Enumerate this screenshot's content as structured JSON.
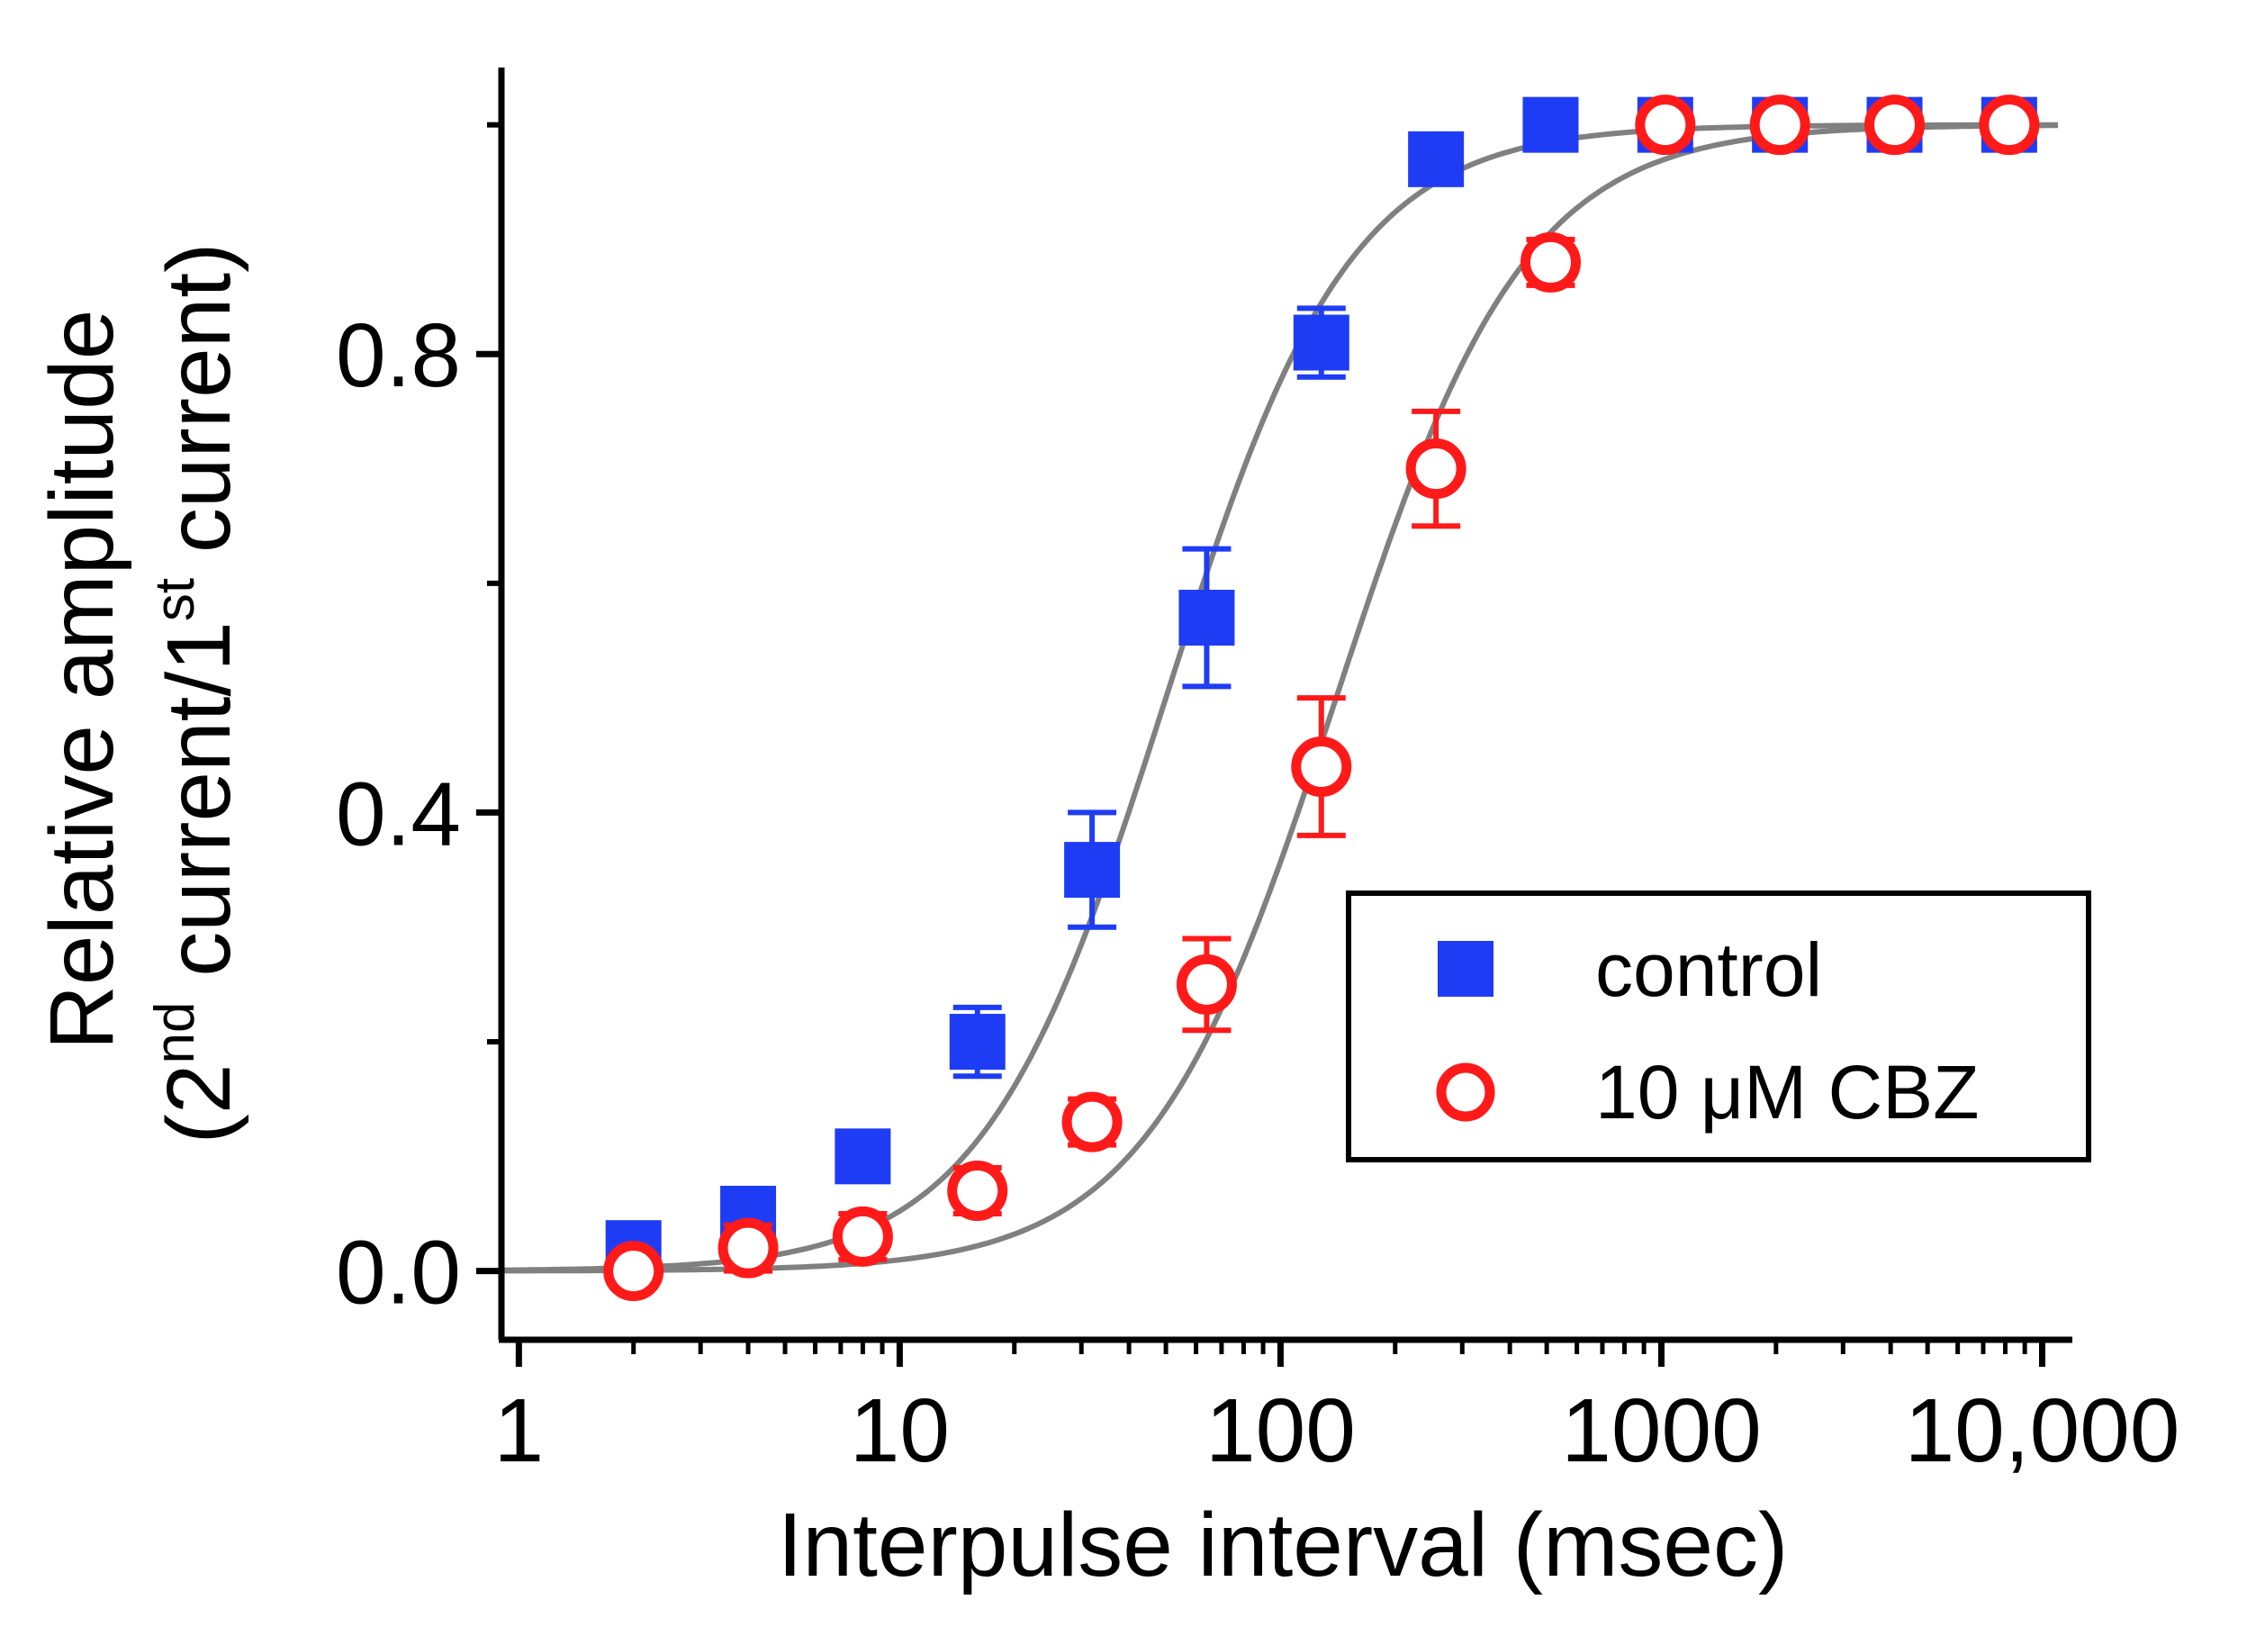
{
  "chart_data": {
    "type": "scatter",
    "title": "",
    "xlabel": "Interpulse interval (msec)",
    "ylabel": {
      "line1": "Relative amplitude",
      "line2_prefix": "(2",
      "line2_sup1": "nd",
      "line2_mid": " current/1",
      "line2_sup2": "st",
      "line2_suffix": " current)"
    },
    "x_scale": "log",
    "xlim": [
      0.9,
      12000
    ],
    "ylim": [
      -0.06,
      1.05
    ],
    "x_ticks": [
      {
        "value": 1,
        "label": "1"
      },
      {
        "value": 10,
        "label": "10"
      },
      {
        "value": 100,
        "label": "100"
      },
      {
        "value": 1000,
        "label": "1000"
      },
      {
        "value": 10000,
        "label": "10,000"
      }
    ],
    "y_ticks": [
      {
        "value": 0.0,
        "label": "0.0"
      },
      {
        "value": 0.4,
        "label": "0.4"
      },
      {
        "value": 0.8,
        "label": "0.8"
      }
    ],
    "y_minor_ticks": [
      0.2,
      0.6,
      1.0
    ],
    "legend_position": "lower-right",
    "series": [
      {
        "name": "control",
        "marker": "filled-square",
        "color": "#1f3cf5",
        "x": [
          2,
          4,
          8,
          16,
          32,
          64,
          128,
          256,
          512,
          1024,
          2048,
          4096,
          8192
        ],
        "y": [
          0.02,
          0.05,
          0.1,
          0.2,
          0.35,
          0.57,
          0.81,
          0.97,
          1.0,
          1.0,
          1.0,
          1.0,
          1.0
        ],
        "err": [
          0.01,
          0.02,
          0.02,
          0.03,
          0.05,
          0.06,
          0.03,
          0.02,
          0.01,
          0.01,
          0.01,
          0.01,
          0.01
        ],
        "fit": {
          "x50": 50,
          "slope": 1.8
        }
      },
      {
        "name": "10 μM CBZ",
        "marker": "open-circle",
        "color": "#ff1a1a",
        "x": [
          2,
          4,
          8,
          16,
          32,
          64,
          128,
          256,
          512,
          1024,
          2048,
          4096,
          8192
        ],
        "y": [
          0.0,
          0.02,
          0.03,
          0.07,
          0.13,
          0.25,
          0.44,
          0.7,
          0.88,
          1.0,
          1.0,
          1.0,
          1.0
        ],
        "err": [
          0.01,
          0.02,
          0.02,
          0.02,
          0.02,
          0.04,
          0.06,
          0.05,
          0.02,
          0.01,
          0.01,
          0.01,
          0.01
        ],
        "fit": {
          "x50": 140,
          "slope": 1.75
        }
      }
    ],
    "fit_color": "#808080"
  }
}
